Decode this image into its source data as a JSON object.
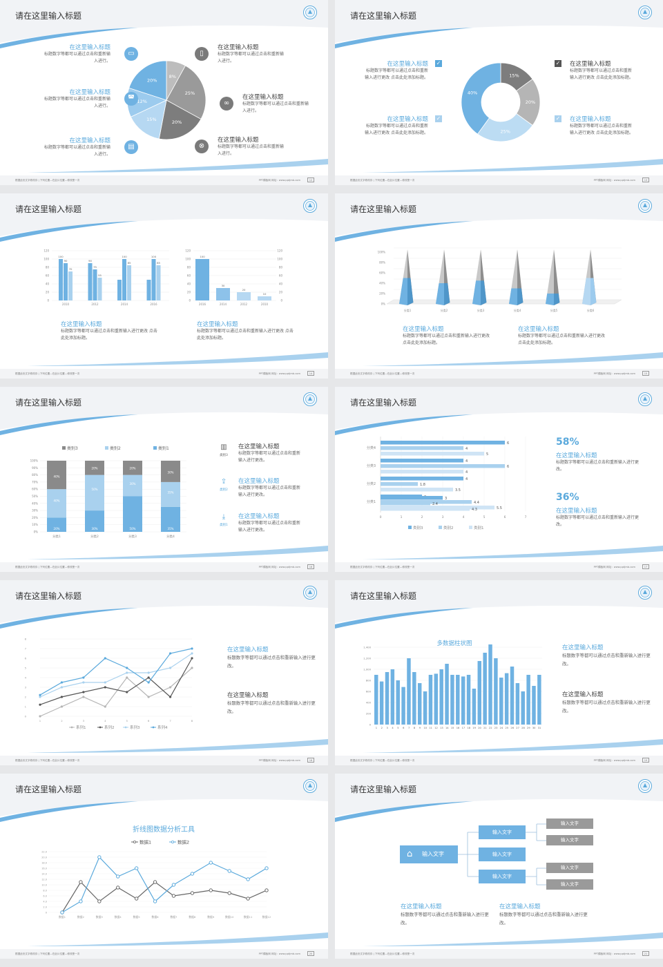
{
  "slides": [
    {
      "title": "请在这里输入标题",
      "footer_left": "根据此处文字修改存 | 下列位置—在此片位置—修改是一次",
      "footer_right": "PPT模板网   网址：www.pptjmb.com",
      "page": "12",
      "items": [
        {
          "heading": "在这里输入标题",
          "text": "标题数字等都可以通过点击和重新输入进行。",
          "icon": "monitor-icon"
        },
        {
          "heading": "在这里输入标题",
          "text": "标题数字等都可以通过点击和重新输入进行。",
          "icon": "car-icon"
        },
        {
          "heading": "在这里输入标题",
          "text": "标题数字等都可以通过点击和重新输入进行。",
          "icon": "book-icon"
        },
        {
          "heading": "在这里输入标题",
          "text": "标题数字等都可以通过点击和重新输入进行。",
          "icon": "phone-icon"
        },
        {
          "heading": "在这里输入标题",
          "text": "标题数字等都可以通过点击和重新输入进行。",
          "icon": "binoculars-icon"
        },
        {
          "heading": "在这里输入标题",
          "text": "标题数字等都可以通过点击和重新输入进行。",
          "icon": "bicycle-icon"
        }
      ]
    },
    {
      "title": "请在这里输入标题",
      "footer_left": "根据此处文字修改存 | 下列位置—在此片位置—修改是一次",
      "footer_right": "PPT模板网   网址：www.pptjmb.com",
      "page": "13",
      "items": [
        {
          "heading": "在这里输入标题",
          "text": "标题数字等都可以通过点击和重新输入进行更改 点击此处添加标题。",
          "icon": "checkbox-icon"
        },
        {
          "heading": "在这里输入标题",
          "text": "标题数字等都可以通过点击和重新输入进行更改 点击此处添加标题。",
          "icon": "checkbox-icon"
        },
        {
          "heading": "在这里输入标题",
          "text": "标题数字等都可以通过点击和重新输入进行更改 点击此处添加标题。",
          "icon": "checkbox-icon"
        },
        {
          "heading": "在这里输入标题",
          "text": "标题数字等都可以通过点击和重新输入进行更改 点击此处添加标题。",
          "icon": "checkbox-icon"
        }
      ]
    },
    {
      "title": "请在这里输入标题",
      "footer_left": "根据此处文字修改存 | 下列位置—在此片位置—修改是一次",
      "footer_right": "PPT模板网   网址：www.pptjmb.com",
      "page": "14",
      "items": [
        {
          "heading": "在这里输入标题",
          "text": "标题数字等都可以通过点击和重新输入进行更改 点击此处添加标题。"
        },
        {
          "heading": "在这里输入标题",
          "text": "标题数字等都可以通过点击和重新输入进行更改 点击此处添加标题。"
        }
      ]
    },
    {
      "title": "请在这里输入标题",
      "footer_left": "根据此处文字修改存 | 下列位置—在此片位置—修改是一次",
      "footer_right": "PPT模板网   网址：www.pptjmb.com",
      "page": "15",
      "items": [
        {
          "heading": "在这里输入标题",
          "text": "标题数字等都可以通过点击和重新输入进行更改 点击此处添加标题。"
        },
        {
          "heading": "在这里输入标题",
          "text": "标题数字等都可以通过点击和重新输入进行更改 点击此处添加标题。"
        }
      ]
    },
    {
      "title": "请在这里输入标题",
      "footer_left": "根据此处文字修改存 | 下列位置—在此片位置—修改是一次",
      "footer_right": "PPT模板网   网址：www.pptjmb.com",
      "page": "16",
      "items": [
        {
          "heading": "在这里输入标题",
          "text": "标题数字等都可以通过点击和重新输入进行更改。",
          "icon": "bar-chart-icon",
          "tag": "类别3"
        },
        {
          "heading": "在这里输入标题",
          "text": "标题数字等都可以通过点击和重新输入进行更改。",
          "icon": "upload-icon",
          "tag": "类别2"
        },
        {
          "heading": "在这里输入标题",
          "text": "标题数字等都可以通过点击和重新输入进行更改。",
          "icon": "download-icon",
          "tag": "类别1"
        }
      ]
    },
    {
      "title": "请在这里输入标题",
      "footer_left": "根据此处文字修改存 | 下列位置—在此片位置—修改是一次",
      "footer_right": "PPT模板网   网址：www.pptjmb.com",
      "page": "17",
      "items": [
        {
          "big": "58%",
          "heading": "在这里输入标题",
          "text": "标题数字等都可以通过点击和重新输入进行更改。"
        },
        {
          "big": "36%",
          "heading": "在这里输入标题",
          "text": "标题数字等都可以通过点击和重新输入进行更改。"
        }
      ]
    },
    {
      "title": "请在这里输入标题",
      "footer_left": "根据此处文字修改存 | 下列位置—在此片位置—修改是一次",
      "footer_right": "PPT模板网   网址：www.pptjmb.com",
      "page": "18",
      "items": [
        {
          "heading": "在这里输入标题",
          "text": "标题数字等都可以通过点击和重新输入进行更改。"
        },
        {
          "heading": "在这里输入标题",
          "text": "标题数字等都可以通过点击和重新输入进行更改。"
        }
      ]
    },
    {
      "title": "请在这里输入标题",
      "footer_left": "根据此处文字修改存 | 下列位置—在此片位置—修改是一次",
      "footer_right": "PPT模板网   网址：www.pptjmb.com",
      "page": "19",
      "items": [
        {
          "heading": "在这里输入标题",
          "text": "标题数字等都可以通过点击和重新输入进行更改。"
        },
        {
          "heading": "在这里输入标题",
          "text": "标题数字等都可以通过点击和重新输入进行更改。"
        }
      ]
    },
    {
      "title": "请在这里输入标题",
      "footer_left": "根据此处文字修改存 | 下列位置—在此片位置—修改是一次",
      "footer_right": "PPT模板网   网址：www.pptjmb.com",
      "page": "20"
    },
    {
      "title": "请在这里输入标题",
      "footer_left": "根据此处文字修改存 | 下列位置—在此片位置—修改是一次",
      "footer_right": "PPT模板网   网址：www.pptjmb.com",
      "page": "21",
      "flow": {
        "root": "输入文字",
        "level2": [
          "输入文字",
          "输入文字",
          "输入文字"
        ],
        "level3": [
          "输入文字",
          "输入文字",
          "输入文字",
          "输入文字"
        ],
        "icon": "home-icon"
      },
      "items": [
        {
          "heading": "在这里输入标题",
          "text": "标题数字等都可以通过点击和重新输入进行更改。"
        },
        {
          "heading": "在这里输入标题",
          "text": "标题数字等都可以通过点击和重新输入进行更改。"
        }
      ]
    }
  ],
  "colors": {
    "accent": "#5aa9dc",
    "light": "#a9d1ee",
    "pale": "#cfe4f5",
    "gray": "#9b9b9b",
    "dark": "#707070"
  },
  "chart_data": [
    {
      "type": "pie",
      "slide": 1,
      "slices": [
        {
          "label": "8%",
          "value": 8,
          "color": "#bdbdbd"
        },
        {
          "label": "25%",
          "value": 25,
          "color": "#9a9a9a"
        },
        {
          "label": "20%",
          "value": 20,
          "color": "#7d7d7d"
        },
        {
          "label": "15%",
          "value": 15,
          "color": "#b6d8f2"
        },
        {
          "label": "12%",
          "value": 12,
          "color": "#9ccbee"
        },
        {
          "label": "20%",
          "value": 20,
          "color": "#6fb2e2"
        }
      ]
    },
    {
      "type": "pie",
      "slide": 2,
      "donut": true,
      "slices": [
        {
          "label": "15%",
          "value": 15,
          "color": "#7d7d7d"
        },
        {
          "label": "20%",
          "value": 20,
          "color": "#b5b5b5"
        },
        {
          "label": "25%",
          "value": 25,
          "color": "#bcdcf3"
        },
        {
          "label": "40%",
          "value": 40,
          "color": "#6fb2e2"
        }
      ]
    },
    {
      "type": "bar",
      "slide": 3,
      "categories": [
        "2010",
        "2012",
        "2014",
        "2016"
      ],
      "ylim": [
        0,
        120
      ],
      "yticks": [
        "0",
        "20",
        "40",
        "60",
        "80",
        "100",
        "120"
      ],
      "series": [
        {
          "values": [
            100,
            90,
            50,
            50
          ],
          "color": "#6fb2e2"
        },
        {
          "values": [
            90,
            75,
            100,
            100
          ],
          "color": "#6fb2e2"
        },
        {
          "values": [
            70,
            55,
            85,
            85
          ],
          "color": "#a9d1ee"
        }
      ],
      "labels": [
        [
          "100",
          "90",
          "70"
        ],
        [
          "90",
          "75",
          "55"
        ],
        [
          "",
          "100",
          "85"
        ],
        [
          "",
          "100",
          "85"
        ]
      ]
    },
    {
      "type": "bar",
      "slide": 3,
      "categories": [
        "2016",
        "2014",
        "2012",
        "2010"
      ],
      "ylim": [
        0,
        120
      ],
      "yticks": [
        "0",
        "20",
        "40",
        "60",
        "80",
        "100",
        "120"
      ],
      "values": [
        100,
        30,
        20,
        10
      ],
      "labels": [
        "100",
        "30",
        "20",
        "10"
      ]
    },
    {
      "type": "bar",
      "slide": 4,
      "pyramid": true,
      "categories": [
        "分类1",
        "分类2",
        "分类3",
        "分类4",
        "分类5",
        "分类6"
      ],
      "yticks": [
        "0%",
        "20%",
        "40%",
        "60%",
        "80%",
        "100%"
      ],
      "values": [
        100,
        100,
        100,
        100,
        100,
        100
      ],
      "fill": [
        0.5,
        0.4,
        0.45,
        0.3,
        0.2,
        0.5
      ]
    },
    {
      "type": "bar",
      "slide": 5,
      "stacked": true,
      "legend": [
        "类别3",
        "类别2",
        "类别1"
      ],
      "categories": [
        "分类1",
        "分类2",
        "分类3",
        "分类4"
      ],
      "yticks": [
        "0%",
        "10%",
        "20%",
        "30%",
        "40%",
        "50%",
        "60%",
        "70%",
        "80%",
        "90%",
        "100%"
      ],
      "series": [
        {
          "name": "类别1",
          "values": [
            20,
            30,
            50,
            35
          ]
        },
        {
          "name": "类别2",
          "values": [
            40,
            50,
            30,
            35
          ]
        },
        {
          "name": "类别3",
          "values": [
            40,
            20,
            20,
            30
          ]
        }
      ],
      "labels": [
        [
          "20%",
          "40%",
          "40%"
        ],
        [
          "30%",
          "50%",
          "20%"
        ],
        [
          "50%",
          "30%",
          "20%"
        ],
        [
          "35%",
          "35%",
          "30%"
        ]
      ]
    },
    {
      "type": "bar",
      "slide": 6,
      "horizontal": true,
      "legend": [
        "类别3",
        "类别2",
        "类别1"
      ],
      "categories": [
        "分类4",
        "分类3",
        "分类2",
        "分类1"
      ],
      "xticks": [
        "0",
        "1",
        "2",
        "3",
        "4",
        "5",
        "6",
        "7"
      ],
      "series": [
        {
          "name": "类别1",
          "values": [
            6,
            4,
            4,
            2
          ]
        },
        {
          "name": "类别2",
          "values": [
            4,
            6,
            1.8,
            4.4
          ]
        },
        {
          "name": "类别3",
          "values": [
            5,
            4,
            3.5,
            5.5
          ]
        }
      ],
      "extra_rows": [
        {
          "values": [
            3,
            2.4,
            4.3
          ]
        }
      ]
    },
    {
      "type": "line",
      "slide": 7,
      "legend": [
        "系列1",
        "系列2",
        "系列3",
        "系列4"
      ],
      "x": [
        1,
        2,
        3,
        4,
        5,
        6,
        7,
        8
      ],
      "yticks": [
        "0",
        "1",
        "2",
        "3",
        "4",
        "5",
        "6",
        "7",
        "8"
      ],
      "series": [
        {
          "name": "系列1",
          "values": [
            0,
            1,
            2,
            1,
            4,
            2,
            3,
            5
          ],
          "color": "#b5b5b5"
        },
        {
          "name": "系列2",
          "values": [
            1.2,
            2,
            2.5,
            3,
            2.5,
            4,
            2,
            6
          ],
          "color": "#555555"
        },
        {
          "name": "系列3",
          "values": [
            2,
            3,
            3.5,
            3.5,
            4.5,
            4.5,
            5,
            6.5
          ],
          "color": "#a9d1ee"
        },
        {
          "name": "系列4",
          "values": [
            2.2,
            3.5,
            4,
            6,
            5,
            3.5,
            6.5,
            7
          ],
          "color": "#5aa9dc"
        }
      ]
    },
    {
      "type": "bar",
      "slide": 8,
      "title": "多数据柱状图",
      "yticks": [
        "0",
        "200",
        "400",
        "600",
        "800",
        "1,000",
        "1,200",
        "1,400"
      ],
      "categories": [
        "1",
        "2",
        "3",
        "4",
        "5",
        "6",
        "7",
        "8",
        "9",
        "10",
        "11",
        "12",
        "13",
        "14",
        "15",
        "16",
        "17",
        "18",
        "19",
        "20",
        "21",
        "22",
        "23",
        "24",
        "25",
        "26",
        "27",
        "28",
        "29",
        "30",
        "31"
      ],
      "values": [
        900,
        780,
        950,
        1000,
        800,
        680,
        1200,
        950,
        750,
        600,
        900,
        920,
        1000,
        1100,
        900,
        900,
        870,
        900,
        650,
        1150,
        1300,
        1450,
        1200,
        850,
        930,
        1050,
        750,
        600,
        900,
        700,
        900
      ]
    },
    {
      "type": "line",
      "slide": 9,
      "title": "折线图数据分析工具",
      "legend": [
        "数据1",
        "数据2"
      ],
      "categories": [
        "数据1",
        "数据2",
        "数据3",
        "数据4",
        "数据5",
        "数据6",
        "数据7",
        "数据8",
        "数据9",
        "数据10",
        "数据11",
        "数据12"
      ],
      "yticks": [
        "0",
        "2.0",
        "4.0",
        "6.0",
        "8.0",
        "10.0",
        "12.0",
        "14.0",
        "16.0",
        "18.0",
        "20.0",
        "22.0"
      ],
      "series": [
        {
          "name": "数据1",
          "values": [
            0,
            11,
            4,
            9,
            5,
            11,
            6,
            7,
            8,
            7,
            5,
            8
          ],
          "color": "#666666"
        },
        {
          "name": "数据2",
          "values": [
            0,
            4,
            20,
            13,
            16,
            4,
            10,
            14,
            18,
            15,
            12,
            16
          ],
          "color": "#5aa9dc"
        }
      ]
    }
  ]
}
